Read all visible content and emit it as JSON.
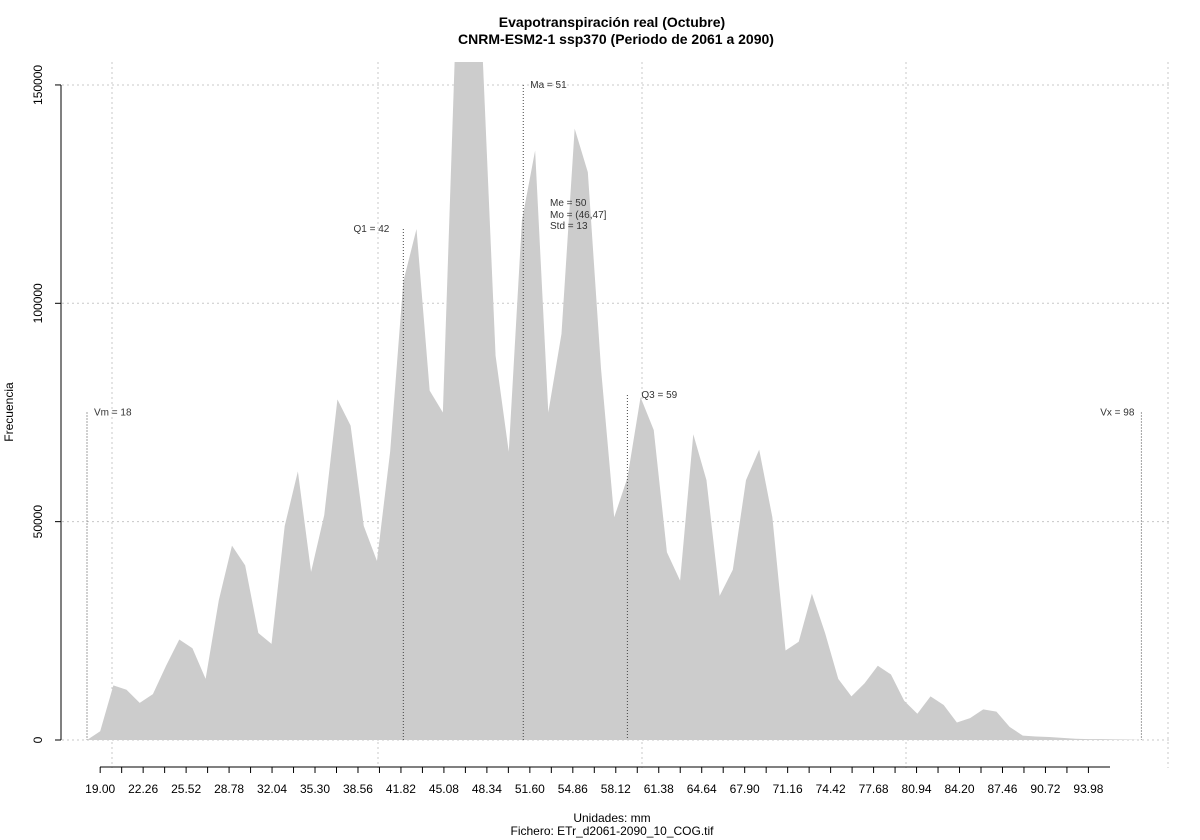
{
  "chart_data": {
    "type": "area",
    "title": "Evapotranspiración real (Octubre)",
    "subtitle": "CNRM-ESM2-1 ssp370 (Periodo de 2061 a 2090)",
    "xlabel": "Unidades: mm",
    "caption": "Fichero: ETr_d2061-2090_10_COG.tif",
    "ylabel": "Frecuencia",
    "xlim": [
      16.5,
      100.5
    ],
    "ylim": [
      0,
      150000
    ],
    "grid": true,
    "fill_color": "#cccccc",
    "x_ticks": [
      "19.00",
      "22.26",
      "25.52",
      "28.78",
      "32.04",
      "35.30",
      "38.56",
      "41.82",
      "45.08",
      "48.34",
      "51.60",
      "54.86",
      "58.12",
      "61.38",
      "64.64",
      "67.90",
      "71.16",
      "74.42",
      "77.68",
      "80.94",
      "84.20",
      "87.46",
      "90.72",
      "93.98"
    ],
    "y_ticks": [
      "0",
      "50000",
      "100000",
      "150000"
    ],
    "x": [
      18,
      19,
      20,
      21,
      22,
      23,
      24,
      25,
      26,
      27,
      28,
      29,
      30,
      31,
      32,
      33,
      34,
      35,
      36,
      37,
      38,
      39,
      40,
      41,
      42,
      43,
      44,
      45,
      46,
      47,
      48,
      49,
      50,
      51,
      52,
      53,
      54,
      55,
      56,
      57,
      58,
      59,
      60,
      61,
      62,
      63,
      64,
      65,
      66,
      67,
      68,
      69,
      70,
      71,
      72,
      73,
      74,
      75,
      76,
      77,
      78,
      79,
      80,
      81,
      82,
      83,
      84,
      85,
      86,
      87,
      88,
      89,
      90,
      91,
      92,
      93,
      94,
      95,
      96,
      97,
      98
    ],
    "values": [
      0,
      2000,
      12500,
      11500,
      8500,
      10500,
      17000,
      23000,
      21000,
      14000,
      32000,
      44500,
      40000,
      24500,
      22000,
      49000,
      61500,
      38500,
      51500,
      78000,
      72000,
      49000,
      41000,
      66000,
      105000,
      117000,
      80000,
      75000,
      165000,
      170000,
      158000,
      88000,
      66000,
      119000,
      135000,
      75000,
      93000,
      140000,
      130000,
      85000,
      51000,
      60000,
      78500,
      71000,
      43000,
      36500,
      70000,
      59500,
      33000,
      39000,
      59500,
      66500,
      51000,
      20500,
      22500,
      33500,
      24500,
      14000,
      10000,
      13000,
      17000,
      15000,
      9000,
      6000,
      10000,
      8000,
      4000,
      5000,
      7000,
      6500,
      3000,
      1000,
      800,
      700,
      500,
      300,
      200,
      200,
      150,
      100,
      0
    ],
    "annotations": [
      {
        "label": "Vm = 18",
        "x": 18,
        "y": 75000
      },
      {
        "label": "Q1 = 42",
        "x": 42,
        "y": 117000
      },
      {
        "label": "Ma = 51",
        "x": 51.1,
        "y": 150000
      },
      {
        "label": "Q3 = 59",
        "x": 59,
        "y": 79000
      },
      {
        "label": "Vx = 98",
        "x": 98,
        "y": 75000
      }
    ],
    "stats": [
      "Me = 50",
      "Mo = (46,47]",
      "Std = 13"
    ]
  }
}
